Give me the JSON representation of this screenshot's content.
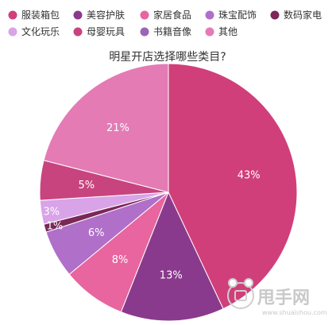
{
  "chart_data": {
    "type": "pie",
    "title": "明星开店选择哪些类目?",
    "categories": [
      "服装箱包",
      "美容护肤",
      "家居食品",
      "珠宝配饰",
      "数码家电",
      "文化玩乐",
      "母婴玩具",
      "书籍音像",
      "其他"
    ],
    "values": [
      43,
      13,
      8,
      6,
      1,
      3,
      5,
      0,
      21
    ],
    "labels": [
      "43%",
      "13%",
      "8%",
      "6%",
      "1%",
      "3%",
      "5%",
      "",
      "21%"
    ],
    "colors": [
      "#d03f7a",
      "#8a3a8c",
      "#e8659f",
      "#b06fc9",
      "#7a2858",
      "#d9a3e8",
      "#c8447e",
      "#9b66b5",
      "#e47bb5"
    ],
    "legend_order": [
      0,
      1,
      2,
      3,
      4,
      5,
      6,
      7,
      8
    ],
    "legend_position": "top"
  },
  "watermark": {
    "text": "甩手网",
    "sub": "www.shuaishou.com"
  }
}
